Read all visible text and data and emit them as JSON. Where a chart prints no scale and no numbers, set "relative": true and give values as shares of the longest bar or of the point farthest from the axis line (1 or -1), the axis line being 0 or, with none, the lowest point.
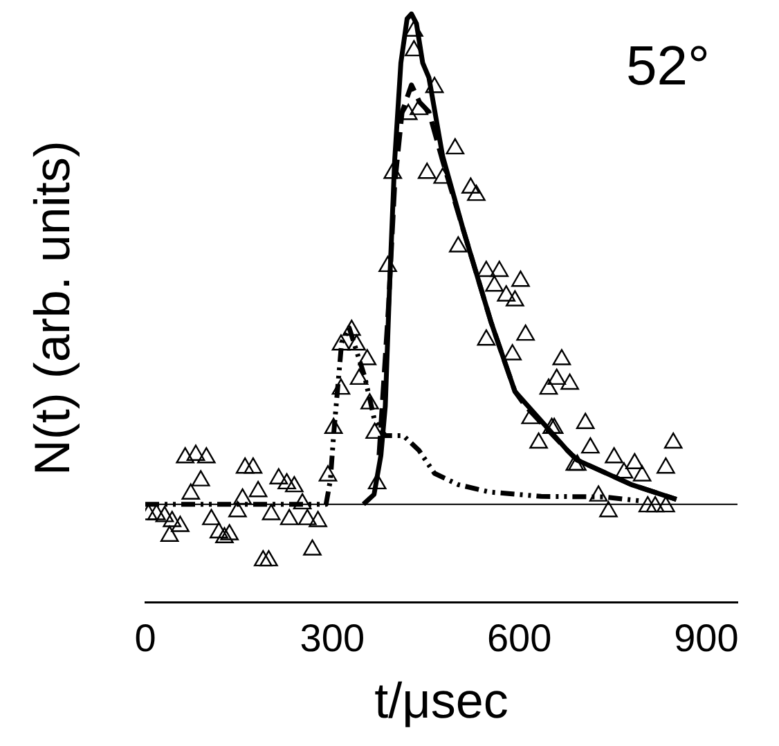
{
  "chart_data": {
    "type": "scatter",
    "relative": true,
    "xlabel": "t/μsec",
    "ylabel": "N(t) (arb. units)",
    "annotations": [
      "52°"
    ],
    "xlim": [
      0,
      950
    ],
    "xticks": [
      0,
      300,
      600,
      900
    ],
    "grid": false,
    "legend": false,
    "ref_lines": [
      {
        "axis": "y",
        "value": 0,
        "color": "#000000"
      }
    ],
    "series": [
      {
        "marker": "triangle",
        "color": "#000000",
        "x": [
          5,
          18,
          31,
          43,
          39,
          56,
          64,
          81,
          98,
          89,
          73,
          106,
          118,
          127,
          135,
          148,
          156,
          160,
          173,
          181,
          189,
          198,
          202,
          214,
          227,
          239,
          231,
          252,
          260,
          268,
          277,
          293,
          302,
          314,
          314,
          331,
          339,
          356,
          343,
          360,
          368,
          372,
          389,
          397,
          431,
          431,
          439,
          422,
          464,
          497,
          452,
          477,
          522,
          531,
          502,
          547,
          568,
          602,
          560,
          579,
          593,
          547,
          610,
          589,
          668,
          660,
          681,
          647,
          618,
          652,
          631,
          693,
          656,
          706,
          714,
          689,
          752,
          785,
          797,
          835,
          847,
          768,
          727,
          743,
          806,
          818,
          835
        ],
        "values": [
          -0.016,
          -0.016,
          -0.02,
          -0.03,
          -0.06,
          -0.04,
          0.1,
          0.105,
          0.1,
          0.053,
          0.026,
          -0.026,
          -0.053,
          -0.063,
          -0.057,
          -0.01,
          0.016,
          0.079,
          0.079,
          0.031,
          -0.11,
          -0.11,
          -0.016,
          0.057,
          0.047,
          0.041,
          -0.026,
          0.006,
          -0.026,
          -0.088,
          -0.03,
          0.063,
          0.16,
          0.24,
          0.33,
          0.36,
          0.33,
          0.3,
          0.26,
          0.21,
          0.15,
          0.047,
          0.49,
          0.68,
          0.93,
          0.97,
          0.81,
          0.8,
          0.855,
          0.73,
          0.68,
          0.67,
          0.65,
          0.635,
          0.53,
          0.48,
          0.48,
          0.46,
          0.45,
          0.43,
          0.42,
          0.34,
          0.35,
          0.31,
          0.3,
          0.26,
          0.25,
          0.24,
          0.18,
          0.16,
          0.13,
          0.085,
          0.16,
          0.17,
          0.12,
          0.085,
          0.1,
          0.088,
          0.063,
          0.079,
          0.13,
          0.069,
          0.022,
          -0.01,
          0,
          0,
          0
        ]
      },
      {
        "type": "line",
        "line_style": "solid",
        "color": "#000000",
        "x": [
          350,
          367,
          378,
          385,
          392,
          400,
          410,
          420,
          427,
          435,
          445,
          455,
          477,
          510,
          555,
          593,
          635,
          677,
          693,
          780,
          852
        ],
        "values": [
          0,
          0.02,
          0.1,
          0.2,
          0.45,
          0.7,
          0.9,
          0.99,
          1,
          0.98,
          0.9,
          0.87,
          0.71,
          0.56,
          0.37,
          0.23,
          0.17,
          0.11,
          0.09,
          0.04,
          0.01
        ]
      },
      {
        "type": "line",
        "line_style": "dashed",
        "color": "#000000",
        "x": [
          375,
          390,
          400,
          412,
          427,
          440,
          455,
          477,
          510,
          555,
          593,
          610,
          677,
          693,
          780,
          852
        ],
        "values": [
          0.1,
          0.4,
          0.65,
          0.8,
          0.855,
          0.82,
          0.8,
          0.7,
          0.56,
          0.37,
          0.23,
          0.2,
          0.11,
          0.09,
          0.04,
          0.01
        ]
      },
      {
        "type": "line",
        "line_style": "dotted",
        "color": "#000000",
        "x": [
          0,
          290,
          297,
          302,
          315,
          327,
          352,
          368,
          385,
          414,
          439,
          464,
          502,
          552,
          635,
          735,
          800
        ],
        "values": [
          0,
          0,
          0.05,
          0.14,
          0.33,
          0.36,
          0.26,
          0.17,
          0.14,
          0.14,
          0.11,
          0.063,
          0.04,
          0.025,
          0.016,
          0.015,
          0.006
        ]
      }
    ]
  }
}
